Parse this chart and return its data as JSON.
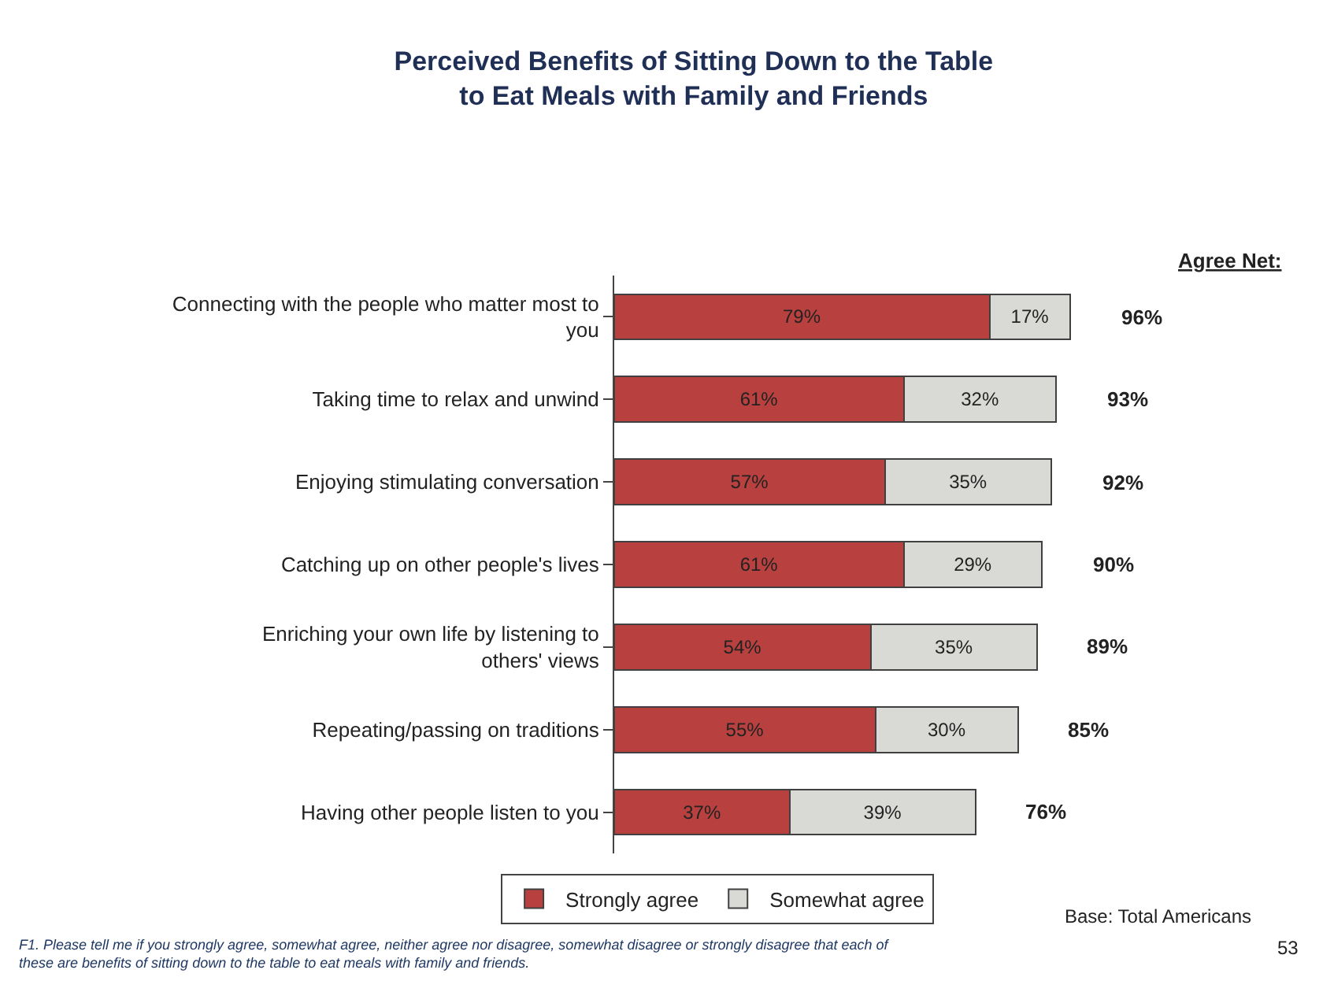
{
  "chart_data": {
    "type": "bar",
    "orientation": "horizontal",
    "stacked": true,
    "title": "Perceived Benefits of Sitting Down to the Table\nto Eat Meals with Family and Friends",
    "categories": [
      "Connecting with the people who matter most to you",
      "Taking time to relax and unwind",
      "Enjoying stimulating conversation",
      "Catching up on other people's lives",
      "Enriching your own life by listening to others' views",
      "Repeating/passing on traditions",
      "Having other people listen to you"
    ],
    "series": [
      {
        "name": "Strongly agree",
        "color": "#b8413f",
        "values": [
          79,
          61,
          57,
          61,
          54,
          55,
          37
        ],
        "value_labels": [
          "79%",
          "61%",
          "57%",
          "61%",
          "54%",
          "55%",
          "37%"
        ]
      },
      {
        "name": "Somewhat agree",
        "color": "#d9d9d6",
        "values": [
          17,
          32,
          35,
          29,
          35,
          30,
          39
        ],
        "value_labels": [
          "17%",
          "32%",
          "35%",
          "29%",
          "35%",
          "30%",
          "39%"
        ]
      }
    ],
    "totals": [
      "96%",
      "93%",
      "92%",
      "90%",
      "89%",
      "85%",
      "76%"
    ],
    "legend": "bottom",
    "annotations": [
      "Agree Net:",
      "Base: Total Americans",
      "F1. Please tell me if you strongly agree, somewhat agree, neither agree nor disagree, somewhat disagree or strongly disagree that each of these are benefits of sitting down to the table to eat meals with family and friends.",
      "53"
    ]
  }
}
